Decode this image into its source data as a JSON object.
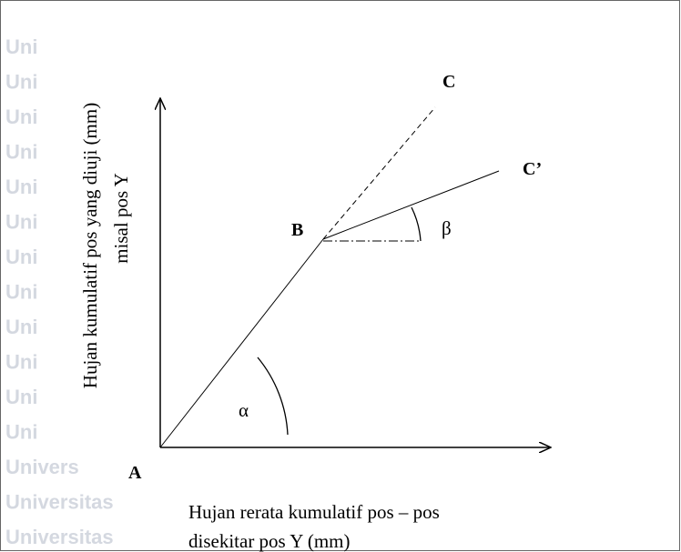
{
  "labels": {
    "A": "A",
    "B": "B",
    "C": "C",
    "C_prime": "C’",
    "alpha": "α",
    "beta": "β"
  },
  "y_axis_label": [
    "Hujan kumulatif pos yang diuji (mm)",
    "misal pos Y"
  ],
  "x_axis_label": [
    "Hujan rerata kumulatif pos – pos",
    "disekitar pos Y (mm)"
  ],
  "watermark": [
    "Uni",
    "Uni",
    "Uni",
    "Uni",
    "Uni",
    "Uni",
    "Uni",
    "Uni",
    "Uni",
    "Uni",
    "Uni",
    "Uni",
    "Univers",
    "Universitas",
    "Universitas"
  ]
}
